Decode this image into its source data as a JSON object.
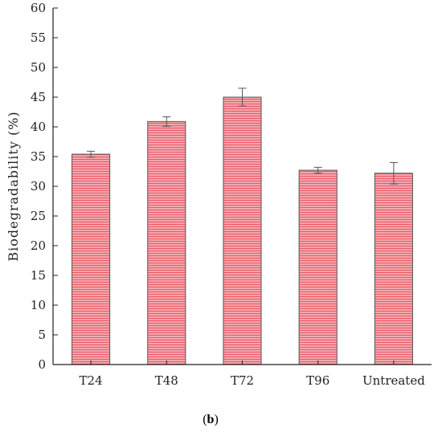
{
  "caption": {
    "open": "(",
    "letter": "b",
    "close": ")"
  },
  "colors": {
    "bar_fill": "#f4a6ad",
    "bar_stripe": "#e8505e",
    "bar_edge": "#555555",
    "axis": "#222222"
  },
  "chart_data": {
    "type": "bar",
    "categories": [
      "T24",
      "T48",
      "T72",
      "T96",
      "Untreated"
    ],
    "values": [
      35.4,
      40.9,
      45.0,
      32.7,
      32.2
    ],
    "errors": [
      0.5,
      0.8,
      1.5,
      0.5,
      1.8
    ],
    "ylabel": "Biodegradability (%)",
    "xlabel": "",
    "ylim": [
      0,
      60
    ],
    "yticks": [
      0,
      5,
      10,
      15,
      20,
      25,
      30,
      35,
      40,
      45,
      50,
      55,
      60
    ],
    "grid": false,
    "legend": "none",
    "pattern": "horizontal-hatch"
  }
}
